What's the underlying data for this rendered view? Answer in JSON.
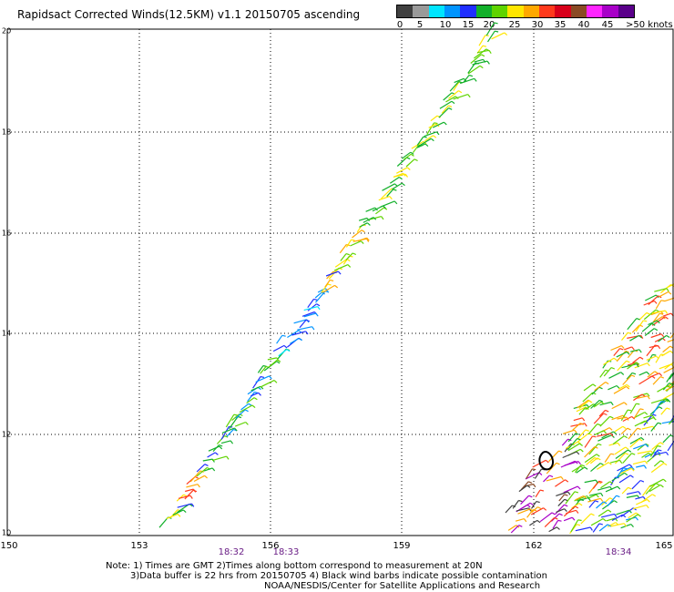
{
  "title": "Rapidsact Corrected Winds(12.5KM) v1.1 20150705 ascending",
  "colorbar": {
    "swatches": [
      "#404040",
      "#9a9a9a",
      "#00e5ff",
      "#0094ff",
      "#1f2eff",
      "#12b02a",
      "#5fd400",
      "#ffe600",
      "#ffa800",
      "#ff3a1c",
      "#d8001a",
      "#8a4a24",
      "#ff24ff",
      "#a800c8",
      "#5a008a"
    ],
    "labels": [
      "0",
      "5",
      "10",
      "15",
      "20",
      "25",
      "30",
      "35",
      "40",
      "45",
      ">50 knots"
    ]
  },
  "axes": {
    "lat_labels": [
      "20",
      "18",
      "16",
      "14",
      "12",
      "10"
    ],
    "lon_labels": [
      "150",
      "153",
      "156",
      "159",
      "162",
      "165"
    ]
  },
  "times": [
    "18:32",
    "18:33",
    "18:34"
  ],
  "notes": [
    "Note: 1) Times are GMT 2)Times along bottom correspond to measurement at 20N",
    "3)Data buffer is 22 hrs from 20150705 4) Black wind barbs indicate possible contamination",
    "NOAA/NESDIS/Center for Satellite Applications and Research"
  ]
}
